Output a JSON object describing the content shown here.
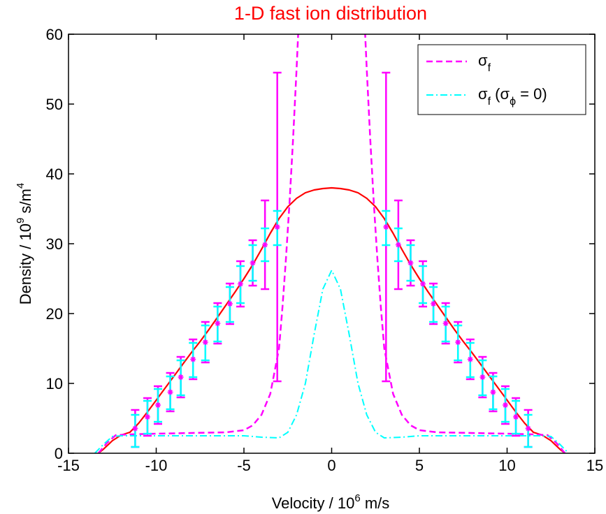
{
  "chart_data": {
    "type": "line",
    "title": "1-D fast ion distribution",
    "xlabel": {
      "base": "Velocity / 10",
      "exp": "6",
      "unit": " m/s"
    },
    "ylabel": {
      "base": "Density / 10",
      "exp": "9",
      "unit": " s/m",
      "unit_exp": "4"
    },
    "xlim": [
      -15,
      15
    ],
    "ylim": [
      0,
      60
    ],
    "xticks": [
      -15,
      -10,
      -5,
      0,
      5,
      10,
      15
    ],
    "yticks": [
      0,
      10,
      20,
      30,
      40,
      50,
      60
    ],
    "grid": false,
    "legend_position": "top-right",
    "legend": [
      {
        "sym": "σ",
        "sub": "f",
        "rest": ""
      },
      {
        "sym": "σ",
        "sub": "f",
        "rest": " (σ",
        "sub2": "ϕ",
        "rest2": " = 0)"
      }
    ],
    "colors": {
      "title": "#ff0000",
      "density": "#ff0000",
      "sigma_f": "#ff00ff",
      "sigma_f_nophi": "#00ffff",
      "axes": "#000000"
    },
    "series": [
      {
        "key": "density",
        "style": "solid",
        "x": [
          -13.3,
          -13.0,
          -12.5,
          -12.0,
          -11.5,
          -11.0,
          -10.5,
          -10.0,
          -9.5,
          -9.0,
          -8.5,
          -8.0,
          -7.5,
          -7.0,
          -6.5,
          -6.0,
          -5.5,
          -5.0,
          -4.5,
          -4.0,
          -3.5,
          -3.0,
          -2.5,
          -2.0,
          -1.5,
          -1.0,
          -0.5,
          0.0,
          0.5,
          1.0,
          1.5,
          2.0,
          2.5,
          3.0,
          3.5,
          4.0,
          4.5,
          5.0,
          5.5,
          6.0,
          6.5,
          7.0,
          7.5,
          8.0,
          8.5,
          9.0,
          9.5,
          10.0,
          10.5,
          11.0,
          11.5,
          12.0,
          12.5,
          13.0,
          13.3
        ],
        "y": [
          0.0,
          0.6,
          1.8,
          2.6,
          3.0,
          4.3,
          5.9,
          7.6,
          9.3,
          11.0,
          12.7,
          14.4,
          16.0,
          17.7,
          19.5,
          21.3,
          23.1,
          25.0,
          27.0,
          29.2,
          31.5,
          33.6,
          35.3,
          36.5,
          37.3,
          37.7,
          37.9,
          38.0,
          37.9,
          37.7,
          37.3,
          36.5,
          35.3,
          33.6,
          31.5,
          29.2,
          27.0,
          25.0,
          23.1,
          21.3,
          19.5,
          17.7,
          16.0,
          14.4,
          12.7,
          11.0,
          9.3,
          7.6,
          5.9,
          4.3,
          3.0,
          2.6,
          1.8,
          0.6,
          0.0
        ]
      },
      {
        "key": "sigma_f",
        "style": "dashed",
        "x": [
          -13.3,
          -12.8,
          -12.3,
          -11.5,
          -10.0,
          -8.0,
          -6.0,
          -5.0,
          -4.5,
          -4.0,
          -3.5,
          -3.0,
          -2.8,
          -2.6,
          -2.4,
          -2.2,
          -2.0,
          -1.8
        ],
        "y": [
          0.0,
          1.5,
          2.6,
          2.7,
          2.8,
          2.9,
          3.0,
          3.3,
          4.0,
          5.5,
          8.5,
          15.0,
          21.0,
          28.0,
          36.0,
          45.0,
          55.0,
          66.0
        ]
      },
      {
        "key": "sigma_f",
        "style": "dashed",
        "x": [
          1.8,
          2.0,
          2.2,
          2.4,
          2.6,
          2.8,
          3.0,
          3.5,
          4.0,
          4.5,
          5.0,
          6.0,
          8.0,
          10.0,
          11.5,
          12.3,
          12.8,
          13.3
        ],
        "y": [
          66.0,
          55.0,
          45.0,
          36.0,
          28.0,
          21.0,
          15.0,
          8.5,
          5.5,
          4.0,
          3.3,
          3.0,
          2.9,
          2.8,
          2.7,
          2.6,
          1.5,
          0.0
        ]
      },
      {
        "key": "sigma_f_nophi",
        "style": "dashdot",
        "x": [
          -13.5,
          -13.0,
          -12.5,
          -12.0,
          -11.0,
          -9.0,
          -7.0,
          -5.0,
          -4.0,
          -3.0,
          -2.5,
          -2.0,
          -1.5,
          -1.0,
          -0.5,
          0.0,
          0.5,
          1.0,
          1.5,
          2.0,
          2.5,
          3.0,
          4.0,
          5.0,
          7.0,
          9.0,
          11.0,
          12.0,
          12.5,
          13.0,
          13.5
        ],
        "y": [
          0.0,
          1.3,
          2.4,
          2.5,
          2.5,
          2.5,
          2.5,
          2.5,
          2.3,
          2.2,
          3.0,
          5.5,
          10.0,
          17.0,
          23.5,
          26.2,
          23.5,
          17.0,
          10.0,
          5.5,
          3.0,
          2.2,
          2.3,
          2.5,
          2.5,
          2.5,
          2.5,
          2.5,
          2.4,
          1.3,
          0.0
        ]
      }
    ],
    "error_bars": {
      "marker": "*",
      "sigma_f": [
        {
          "x": -11.2,
          "lo": 0.9,
          "hi": 6.2
        },
        {
          "x": -10.5,
          "lo": 2.5,
          "hi": 7.9
        },
        {
          "x": -9.9,
          "lo": 4.2,
          "hi": 9.6
        },
        {
          "x": -9.2,
          "lo": 6.0,
          "hi": 11.5
        },
        {
          "x": -8.6,
          "lo": 8.0,
          "hi": 13.8
        },
        {
          "x": -7.9,
          "lo": 10.6,
          "hi": 16.3
        },
        {
          "x": -7.2,
          "lo": 13.0,
          "hi": 18.8
        },
        {
          "x": -6.5,
          "lo": 15.7,
          "hi": 21.5
        },
        {
          "x": -5.8,
          "lo": 18.5,
          "hi": 24.3
        },
        {
          "x": -5.2,
          "lo": 21.0,
          "hi": 27.5
        },
        {
          "x": -4.5,
          "lo": 24.0,
          "hi": 30.5
        },
        {
          "x": -3.8,
          "lo": 23.5,
          "hi": 36.2
        },
        {
          "x": -3.1,
          "lo": 10.3,
          "hi": 54.5
        },
        {
          "x": 3.1,
          "lo": 10.3,
          "hi": 54.5
        },
        {
          "x": 3.8,
          "lo": 23.5,
          "hi": 36.2
        },
        {
          "x": 4.5,
          "lo": 24.0,
          "hi": 30.5
        },
        {
          "x": 5.2,
          "lo": 21.0,
          "hi": 27.5
        },
        {
          "x": 5.8,
          "lo": 18.5,
          "hi": 24.3
        },
        {
          "x": 6.5,
          "lo": 15.7,
          "hi": 21.5
        },
        {
          "x": 7.2,
          "lo": 13.0,
          "hi": 18.8
        },
        {
          "x": 7.9,
          "lo": 10.6,
          "hi": 16.3
        },
        {
          "x": 8.6,
          "lo": 8.0,
          "hi": 13.8
        },
        {
          "x": 9.2,
          "lo": 6.0,
          "hi": 11.5
        },
        {
          "x": 9.9,
          "lo": 4.2,
          "hi": 9.6
        },
        {
          "x": 10.5,
          "lo": 2.5,
          "hi": 7.9
        },
        {
          "x": 11.2,
          "lo": 0.9,
          "hi": 6.2
        }
      ],
      "sigma_f_nophi": [
        {
          "x": -11.2,
          "lo": 0.9,
          "hi": 5.5
        },
        {
          "x": -10.5,
          "lo": 2.8,
          "hi": 7.5
        },
        {
          "x": -9.9,
          "lo": 4.5,
          "hi": 9.2
        },
        {
          "x": -9.2,
          "lo": 6.3,
          "hi": 11.0
        },
        {
          "x": -8.6,
          "lo": 8.3,
          "hi": 13.3
        },
        {
          "x": -7.9,
          "lo": 10.9,
          "hi": 15.8
        },
        {
          "x": -7.2,
          "lo": 13.3,
          "hi": 18.3
        },
        {
          "x": -6.5,
          "lo": 16.0,
          "hi": 21.0
        },
        {
          "x": -5.8,
          "lo": 18.8,
          "hi": 23.8
        },
        {
          "x": -5.2,
          "lo": 21.5,
          "hi": 26.8
        },
        {
          "x": -4.5,
          "lo": 24.7,
          "hi": 29.8
        },
        {
          "x": -3.8,
          "lo": 27.5,
          "hi": 32.2
        },
        {
          "x": -3.1,
          "lo": 29.8,
          "hi": 34.7
        },
        {
          "x": 3.1,
          "lo": 29.8,
          "hi": 34.7
        },
        {
          "x": 3.8,
          "lo": 27.5,
          "hi": 32.2
        },
        {
          "x": 4.5,
          "lo": 24.7,
          "hi": 29.8
        },
        {
          "x": 5.2,
          "lo": 21.5,
          "hi": 26.8
        },
        {
          "x": 5.8,
          "lo": 18.8,
          "hi": 23.8
        },
        {
          "x": 6.5,
          "lo": 16.0,
          "hi": 21.0
        },
        {
          "x": 7.2,
          "lo": 13.3,
          "hi": 18.3
        },
        {
          "x": 7.9,
          "lo": 10.9,
          "hi": 15.8
        },
        {
          "x": 8.6,
          "lo": 8.3,
          "hi": 13.3
        },
        {
          "x": 9.2,
          "lo": 6.3,
          "hi": 11.0
        },
        {
          "x": 9.9,
          "lo": 4.5,
          "hi": 9.2
        },
        {
          "x": 10.5,
          "lo": 2.8,
          "hi": 7.5
        },
        {
          "x": 11.2,
          "lo": 0.9,
          "hi": 5.5
        }
      ]
    }
  }
}
